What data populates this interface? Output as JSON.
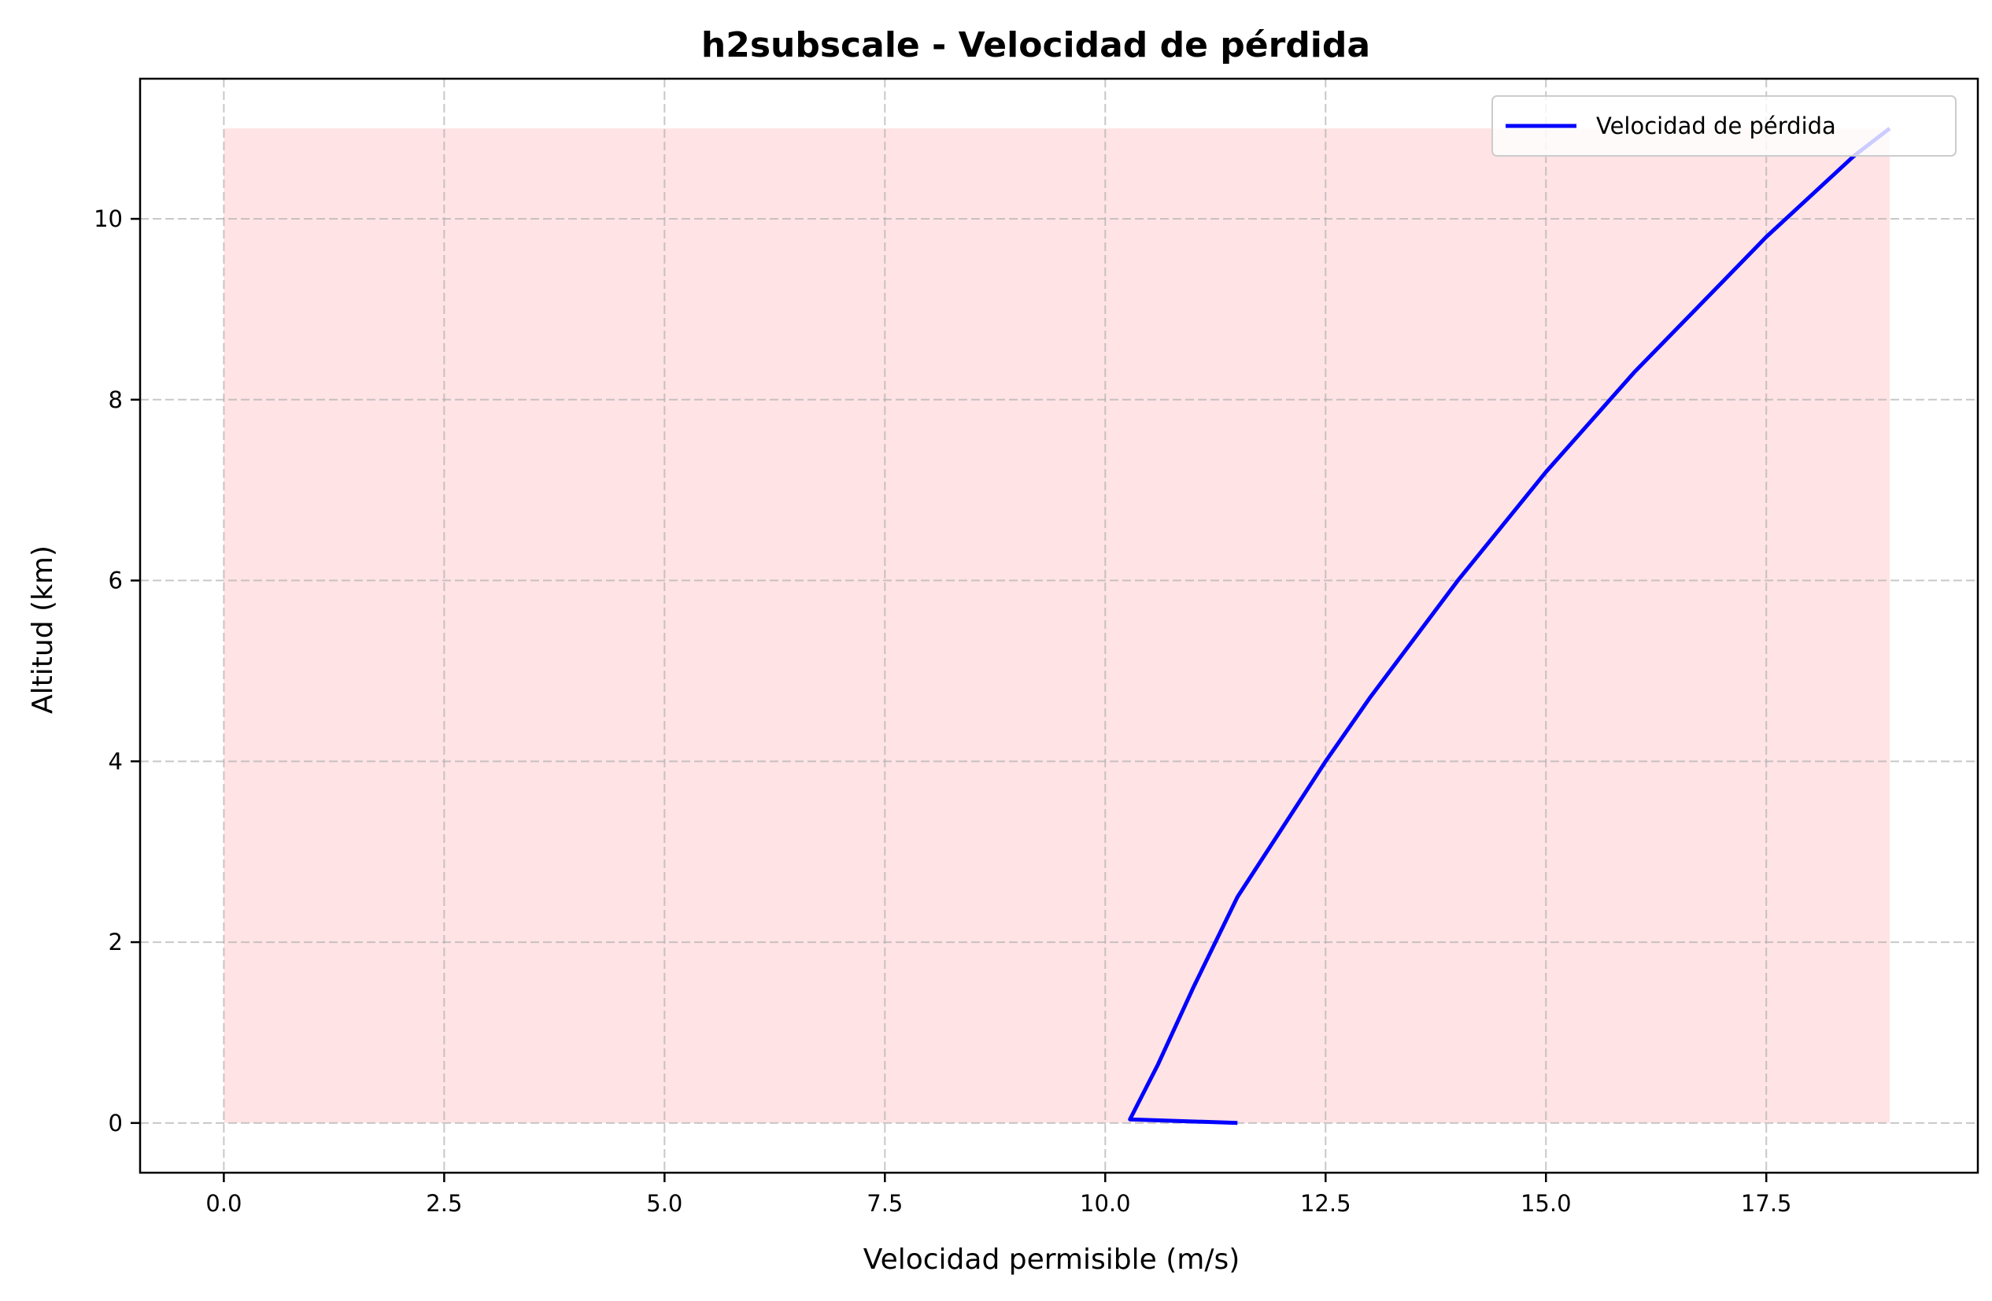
{
  "chart_data": {
    "type": "line",
    "title": "h2subscale - Velocidad de pérdida",
    "xlabel": "Velocidad permisible (m/s)",
    "ylabel": "Altitud (km)",
    "xlim": [
      -0.95,
      19.9
    ],
    "ylim": [
      -0.55,
      11.55
    ],
    "xticks": [
      0.0,
      2.5,
      5.0,
      7.5,
      10.0,
      12.5,
      15.0,
      17.5
    ],
    "xtick_labels": [
      "0.0",
      "2.5",
      "5.0",
      "7.5",
      "10.0",
      "12.5",
      "15.0",
      "17.5"
    ],
    "yticks": [
      0,
      2,
      4,
      6,
      8,
      10
    ],
    "ytick_labels": [
      "0",
      "2",
      "4",
      "6",
      "8",
      "10"
    ],
    "grid": true,
    "legend": {
      "placement": "upper-right",
      "entries": [
        "Velocidad de pérdida"
      ]
    },
    "fill_region": {
      "x": [
        0,
        18.9
      ],
      "y": [
        0,
        11
      ],
      "color": "#ffe3e5"
    },
    "series": [
      {
        "name": "Velocidad de pérdida",
        "color": "#0000ff",
        "x": [
          11.5,
          10.28,
          10.6,
          11.0,
          11.5,
          12.0,
          12.5,
          13.0,
          13.5,
          14.0,
          14.5,
          15.0,
          15.5,
          16.0,
          16.5,
          17.0,
          17.5,
          18.0,
          18.5,
          18.9
        ],
        "y": [
          0.0,
          0.04,
          0.65,
          1.5,
          2.5,
          3.25,
          4.0,
          4.7,
          5.35,
          6.0,
          6.6,
          7.2,
          7.75,
          8.3,
          8.8,
          9.3,
          9.8,
          10.25,
          10.7,
          11.0
        ]
      }
    ]
  }
}
